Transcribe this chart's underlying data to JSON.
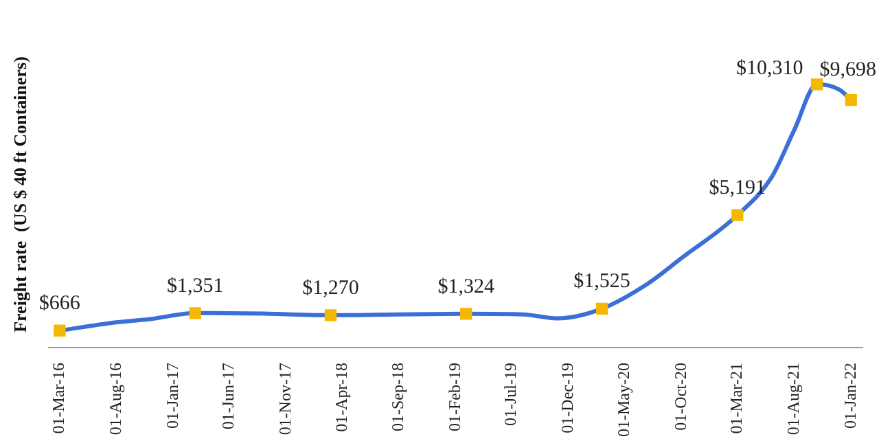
{
  "chart_data": {
    "type": "line",
    "ylabel": "Freight rate  (US $ 40 ft Containers)",
    "xlim": [
      "2016-02-01",
      "2022-02-01"
    ],
    "xticks": [
      {
        "value": "2016-03-01",
        "label": "01-Mar-16"
      },
      {
        "value": "2016-08-01",
        "label": "01-Aug-16"
      },
      {
        "value": "2017-01-01",
        "label": "01-Jan-17"
      },
      {
        "value": "2017-06-01",
        "label": "01-Jun-17"
      },
      {
        "value": "2017-11-01",
        "label": "01-Nov-17"
      },
      {
        "value": "2018-04-01",
        "label": "01-Apr-18"
      },
      {
        "value": "2018-09-01",
        "label": "01-Sep-18"
      },
      {
        "value": "2019-02-01",
        "label": "01-Feb-19"
      },
      {
        "value": "2019-07-01",
        "label": "01-Jul-19"
      },
      {
        "value": "2019-12-01",
        "label": "01-Dec-19"
      },
      {
        "value": "2020-05-01",
        "label": "01-May-20"
      },
      {
        "value": "2020-10-01",
        "label": "01-Oct-20"
      },
      {
        "value": "2021-03-01",
        "label": "01-Mar-21"
      },
      {
        "value": "2021-08-01",
        "label": "01-Aug-21"
      },
      {
        "value": "2022-01-01",
        "label": "01-Jan-22"
      }
    ],
    "tick_labels": "x",
    "grid": false,
    "legend": false,
    "series": [
      {
        "color": "#3a6fd8",
        "marker": "none",
        "x": [
          "2016-03-01",
          "2016-08-01",
          "2016-11-01",
          "2017-03-01",
          "2017-09-01",
          "2018-03-01",
          "2018-09-01",
          "2019-03-01",
          "2019-08-01",
          "2019-11-01",
          "2020-03-01",
          "2020-07-01",
          "2020-10-01",
          "2021-03-01",
          "2021-06-01",
          "2021-08-01",
          "2021-10-01",
          "2021-12-01",
          "2022-01-01"
        ],
        "values": [
          666,
          990,
          1120,
          1351,
          1330,
          1270,
          1300,
          1324,
          1300,
          1145,
          1525,
          2490,
          3500,
          5191,
          6670,
          8520,
          10310,
          10100,
          9698
        ]
      },
      {
        "type": "scatter",
        "color": "#f5b800",
        "marker": "square",
        "x": [
          "2016-03-01",
          "2017-03-01",
          "2018-03-01",
          "2019-03-01",
          "2020-03-01",
          "2021-03-01",
          "2021-10-01",
          "2022-01-01"
        ],
        "values": [
          666,
          1351,
          1270,
          1324,
          1525,
          5191,
          10310,
          9698
        ],
        "value_labels": [
          "$666",
          "$1,351",
          "$1,270",
          "$1,324",
          "$1,525",
          "$5,191",
          "$10,310",
          "$9,698"
        ]
      }
    ]
  }
}
